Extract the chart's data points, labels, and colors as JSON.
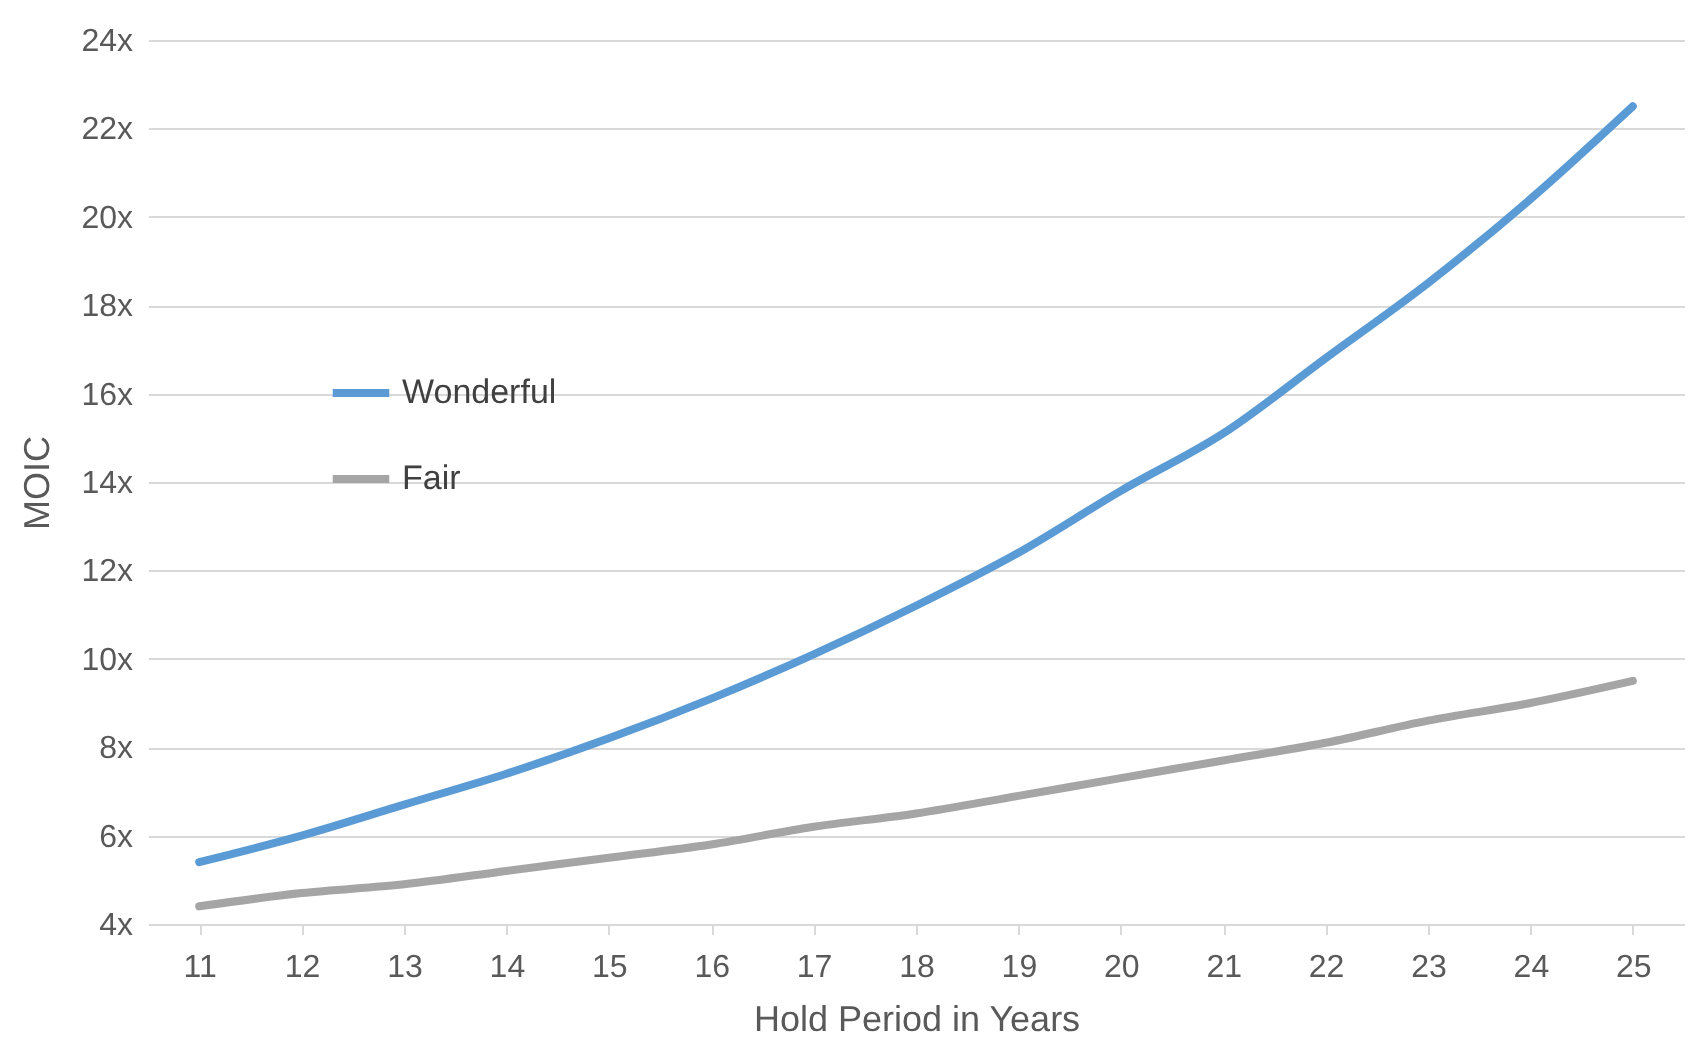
{
  "chart_data": {
    "type": "line",
    "xlabel": "Hold Period in Years",
    "ylabel": "MOIC",
    "categories": [
      "11",
      "12",
      "13",
      "14",
      "15",
      "16",
      "17",
      "18",
      "19",
      "20",
      "21",
      "22",
      "23",
      "24",
      "25"
    ],
    "series": [
      {
        "name": "Wonderful",
        "color": "#5b9bd5",
        "values": [
          5.4,
          6.0,
          6.7,
          7.4,
          8.2,
          9.1,
          10.1,
          11.2,
          12.4,
          13.8,
          15.1,
          16.8,
          18.5,
          20.4,
          22.5
        ]
      },
      {
        "name": "Fair",
        "color": "#a5a5a5",
        "values": [
          4.4,
          4.7,
          4.9,
          5.2,
          5.5,
          5.8,
          6.2,
          6.5,
          6.9,
          7.3,
          7.7,
          8.1,
          8.6,
          9.0,
          9.5
        ]
      }
    ],
    "ylim": [
      4,
      24
    ],
    "yticks": [
      {
        "value": 4,
        "label": "4x"
      },
      {
        "value": 6,
        "label": "6x"
      },
      {
        "value": 8,
        "label": "8x"
      },
      {
        "value": 10,
        "label": "10x"
      },
      {
        "value": 12,
        "label": "12x"
      },
      {
        "value": 14,
        "label": "14x"
      },
      {
        "value": 16,
        "label": "16x"
      },
      {
        "value": 18,
        "label": "18x"
      },
      {
        "value": 20,
        "label": "20x"
      },
      {
        "value": 22,
        "label": "22x"
      },
      {
        "value": 24,
        "label": "24x"
      }
    ],
    "grid": "y",
    "legend": "top left",
    "marker": "none",
    "line_style": "solid"
  }
}
